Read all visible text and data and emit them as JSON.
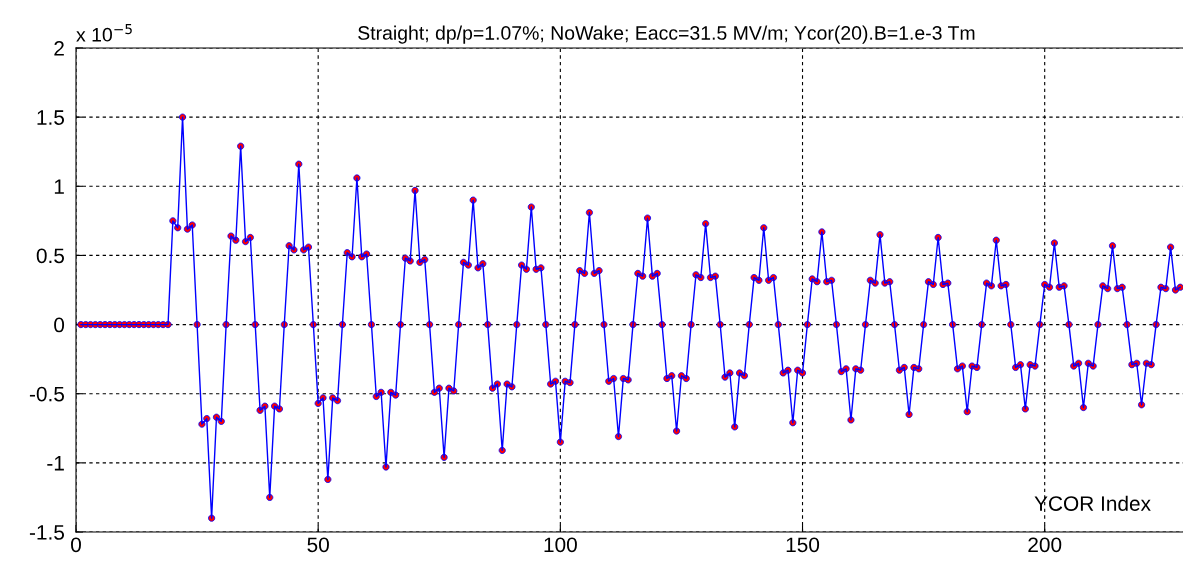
{
  "chart_data": {
    "type": "line",
    "title": "Straight; dp/p=1.07%; NoWake; Eacc=31.5 MV/m; Ycor(20).B=1.e-3 Tm",
    "xlabel": "YCOR Index",
    "annotations": [
      "x 10$^{−5}$"
    ],
    "x": [
      1,
      2,
      3,
      4,
      5,
      6,
      7,
      8,
      9,
      10,
      11,
      12,
      13,
      14,
      15,
      16,
      17,
      18,
      19,
      20,
      21,
      22,
      23,
      24,
      25,
      26,
      27,
      28,
      29,
      30,
      31,
      32,
      33,
      34,
      35,
      36,
      37,
      38,
      39,
      40,
      41,
      42,
      43,
      44,
      45,
      46,
      47,
      48,
      49,
      50,
      51,
      52,
      53,
      54,
      55,
      56,
      57,
      58,
      59,
      60,
      61,
      62,
      63,
      64,
      65,
      66,
      67,
      68,
      69,
      70,
      71,
      72,
      73,
      74,
      75,
      76,
      77,
      78,
      79,
      80,
      81,
      82,
      83,
      84,
      85,
      86,
      87,
      88,
      89,
      90,
      91,
      92,
      93,
      94,
      95,
      96,
      97,
      98,
      99,
      100,
      101,
      102,
      103,
      104,
      105,
      106,
      107,
      108,
      109,
      110,
      111,
      112,
      113,
      114,
      115,
      116,
      117,
      118,
      119,
      120,
      121,
      122,
      123,
      124,
      125,
      126,
      127,
      128,
      129,
      130,
      131,
      132,
      133,
      134,
      135,
      136,
      137,
      138,
      139,
      140,
      141,
      142,
      143,
      144,
      145,
      146,
      147,
      148,
      149,
      150,
      151,
      152,
      153,
      154,
      155,
      156,
      157,
      158,
      159,
      160,
      161,
      162,
      163,
      164,
      165,
      166,
      167,
      168,
      169,
      170,
      171,
      172,
      173,
      174,
      175,
      176,
      177,
      178,
      179,
      180,
      181,
      182,
      183,
      184,
      185,
      186,
      187,
      188,
      189,
      190,
      191,
      192,
      193,
      194,
      195,
      196,
      197,
      198,
      199,
      200,
      201,
      202,
      203,
      204,
      205,
      206,
      207,
      208,
      209,
      210,
      211,
      212,
      213,
      214,
      215,
      216,
      217,
      218,
      219,
      220,
      221,
      222,
      223,
      224,
      225,
      226,
      227,
      228
    ],
    "series": [
      {
        "color": "#0000ff",
        "values": [
          0,
          0,
          0,
          0,
          0,
          0,
          0,
          0,
          0,
          0,
          0,
          0,
          0,
          0,
          0,
          0,
          0,
          0,
          0,
          0.75,
          0.7,
          1.5,
          0.69,
          0.72,
          0,
          -0.72,
          -0.68,
          -1.4,
          -0.67,
          -0.7,
          0,
          0.64,
          0.61,
          1.29,
          0.6,
          0.63,
          0,
          -0.62,
          -0.59,
          -1.25,
          -0.59,
          -0.61,
          0,
          0.57,
          0.54,
          1.16,
          0.54,
          0.56,
          0,
          -0.57,
          -0.53,
          -1.12,
          -0.53,
          -0.55,
          0,
          0.52,
          0.49,
          1.06,
          0.49,
          0.51,
          0,
          -0.52,
          -0.49,
          -1.03,
          -0.49,
          -0.51,
          0,
          0.48,
          0.46,
          0.97,
          0.45,
          0.47,
          0,
          -0.49,
          -0.46,
          -0.96,
          -0.46,
          -0.48,
          0,
          0.45,
          0.43,
          0.9,
          0.41,
          0.44,
          0,
          -0.46,
          -0.43,
          -0.91,
          -0.43,
          -0.45,
          0,
          0.43,
          0.4,
          0.85,
          0.4,
          0.41,
          0,
          -0.43,
          -0.41,
          -0.85,
          -0.41,
          -0.42,
          0,
          0.39,
          0.37,
          0.81,
          0.37,
          0.39,
          0,
          -0.41,
          -0.39,
          -0.81,
          -0.39,
          -0.4,
          0,
          0.37,
          0.35,
          0.77,
          0.35,
          0.37,
          0,
          -0.39,
          -0.37,
          -0.77,
          -0.37,
          -0.39,
          0,
          0.36,
          0.34,
          0.73,
          0.34,
          0.35,
          0,
          -0.38,
          -0.35,
          -0.74,
          -0.35,
          -0.37,
          0,
          0.34,
          0.32,
          0.7,
          0.32,
          0.34,
          0,
          -0.35,
          -0.33,
          -0.71,
          -0.33,
          -0.35,
          0,
          0.33,
          0.31,
          0.67,
          0.31,
          0.32,
          0,
          -0.34,
          -0.32,
          -0.69,
          -0.32,
          -0.33,
          0,
          0.32,
          0.3,
          0.65,
          0.3,
          0.31,
          0,
          -0.33,
          -0.31,
          -0.65,
          -0.31,
          -0.32,
          0,
          0.31,
          0.29,
          0.63,
          0.29,
          0.3,
          0,
          -0.32,
          -0.3,
          -0.63,
          -0.3,
          -0.31,
          0,
          0.3,
          0.28,
          0.61,
          0.28,
          0.29,
          0,
          -0.31,
          -0.29,
          -0.61,
          -0.29,
          -0.3,
          0,
          0.29,
          0.27,
          0.59,
          0.27,
          0.28,
          0,
          -0.3,
          -0.28,
          -0.6,
          -0.28,
          -0.3,
          0,
          0.28,
          0.26,
          0.57,
          0.26,
          0.27,
          0,
          -0.29,
          -0.28,
          -0.58,
          -0.28,
          -0.29,
          0,
          0.27,
          0.26,
          0.56,
          0.25,
          0.27
        ]
      }
    ],
    "xlim": [
      0,
      230
    ],
    "xticks": [
      0,
      50,
      100,
      150,
      200
    ],
    "ylim": [
      -1.5,
      2
    ],
    "yticks": [
      -1.5,
      -1,
      -0.5,
      0,
      0.5,
      1,
      1.5,
      2
    ],
    "grid": true,
    "marker": "circle",
    "line_style": "solid"
  }
}
